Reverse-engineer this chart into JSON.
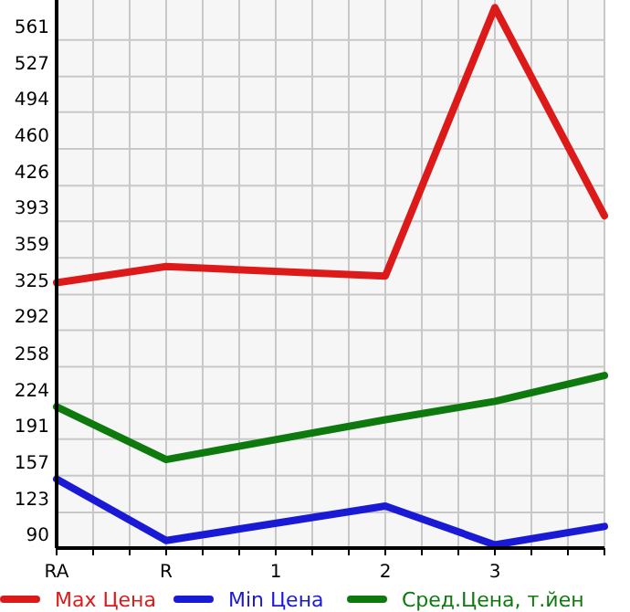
{
  "chart_data": {
    "type": "line",
    "categories": [
      "RA",
      "R",
      "1",
      "2",
      "3",
      null
    ],
    "series": [
      {
        "name": "Max Цена",
        "color": "#dd1a1a",
        "values": [
          336,
          351,
          null,
          342,
          591,
          398
        ]
      },
      {
        "name": "Min Цена",
        "color": "#1a1ad6",
        "values": [
          154,
          97,
          null,
          129,
          93,
          110
        ]
      },
      {
        "name": "Сред.Цена, т.йен",
        "color": "#0e7a0e",
        "values": [
          221,
          172,
          null,
          209,
          226,
          250
        ]
      }
    ],
    "ylim": [
      90,
      598
    ],
    "yticks": [
      90,
      123,
      157,
      191,
      224,
      258,
      292,
      325,
      359,
      393,
      426,
      460,
      494,
      527,
      561
    ],
    "grid": true,
    "legend": "bottom",
    "marker": "none",
    "line_style": "solid"
  }
}
